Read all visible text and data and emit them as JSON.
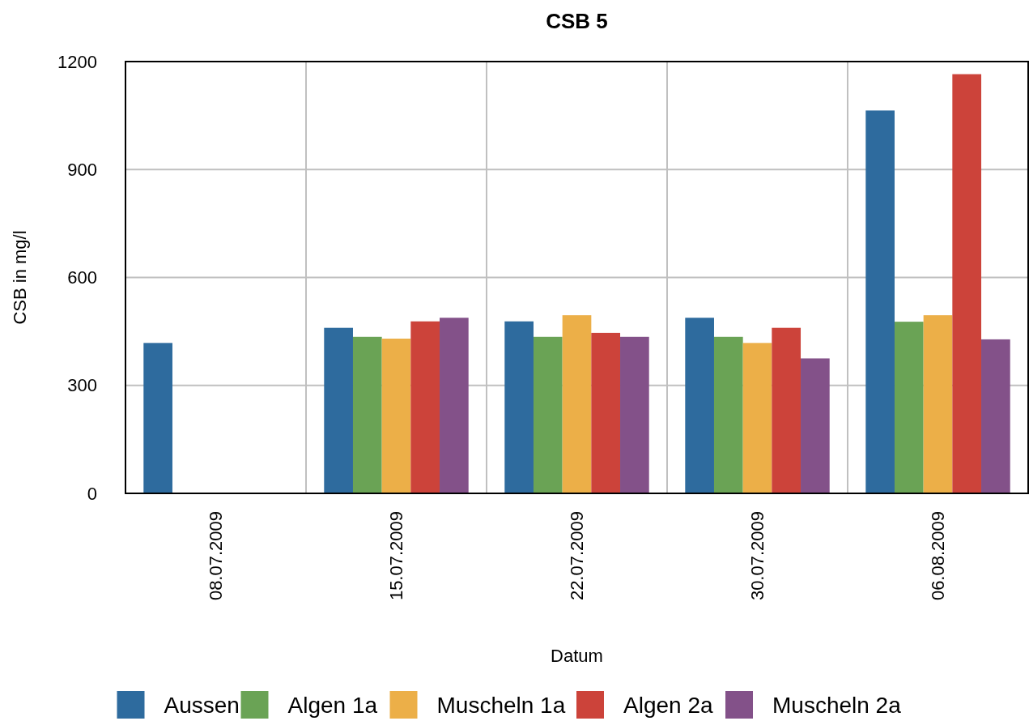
{
  "chart_data": {
    "type": "bar",
    "title": "CSB 5",
    "xlabel": "Datum",
    "ylabel": "CSB in mg/l",
    "categories": [
      "08.07.2009",
      "15.07.2009",
      "22.07.2009",
      "30.07.2009",
      "06.08.2009"
    ],
    "series": [
      {
        "name": "Aussen",
        "color": "#2e6b9e",
        "values": [
          418,
          460,
          478,
          488,
          1064
        ]
      },
      {
        "name": "Algen 1a",
        "color": "#6aa355",
        "values": [
          null,
          435,
          435,
          435,
          477
        ]
      },
      {
        "name": "Muscheln 1a",
        "color": "#ecaf48",
        "values": [
          null,
          430,
          495,
          418,
          495
        ]
      },
      {
        "name": "Algen 2a",
        "color": "#cc433a",
        "values": [
          null,
          478,
          446,
          460,
          1165
        ]
      },
      {
        "name": "Muscheln 2a",
        "color": "#835189",
        "values": [
          null,
          488,
          435,
          375,
          428
        ]
      }
    ],
    "ylim": [
      0,
      1200
    ],
    "yticks": [
      0,
      300,
      600,
      900,
      1200
    ],
    "grid": true,
    "legend": "bottom"
  }
}
